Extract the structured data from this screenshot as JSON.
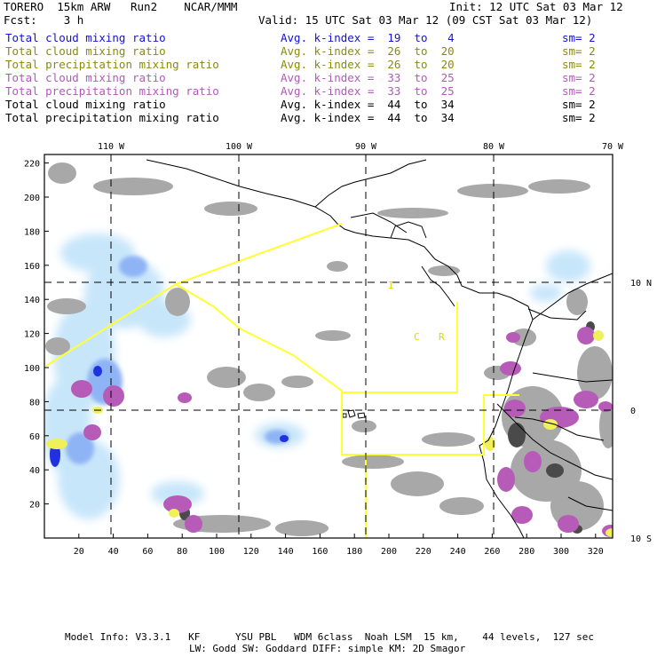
{
  "header": {
    "model": "TORERO  15km ARW   Run2    NCAR/MMM",
    "init": "Init: 12 UTC Sat 03 Mar 12",
    "fcst": "Fcst:    3 h",
    "valid": "Valid: 15 UTC Sat 03 Mar 12 (09 CST Sat 03 Mar 12)"
  },
  "legend": [
    {
      "field": "Total cloud mixing ratio",
      "kindex": "Avg. k-index =  19  to   4",
      "sm": "sm= 2",
      "color": "#1414c8"
    },
    {
      "field": "Total cloud mixing ratio",
      "kindex": "Avg. k-index =  26  to  20",
      "sm": "sm= 2",
      "color": "#8a8a10"
    },
    {
      "field": "Total precipitation mixing ratio",
      "kindex": "Avg. k-index =  26  to  20",
      "sm": "sm= 2",
      "color": "#8a8a10"
    },
    {
      "field": "Total cloud mixing ratio",
      "kindex": "Avg. k-index =  33  to  25",
      "sm": "sm= 2",
      "color": "#b05ab8"
    },
    {
      "field": "Total precipitation mixing ratio",
      "kindex": "Avg. k-index =  33  to  25",
      "sm": "sm= 2",
      "color": "#b05ab8"
    },
    {
      "field": "Total cloud mixing ratio",
      "kindex": "Avg. k-index =  44  to  34",
      "sm": "sm= 2",
      "color": "#000000"
    },
    {
      "field": "Total precipitation mixing ratio",
      "kindex": "Avg. k-index =  44  to  34",
      "sm": "sm= 2",
      "color": "#000000"
    }
  ],
  "map": {
    "lon_labels": [
      "110 W",
      "100 W",
      "90 W",
      "80 W",
      "70 W"
    ],
    "lat_labels": [
      "10 N",
      "0",
      "10 S"
    ],
    "y_ticks": [
      "220",
      "200",
      "180",
      "160",
      "140",
      "120",
      "100",
      "80",
      "60",
      "40",
      "20"
    ],
    "x_ticks": [
      "20",
      "40",
      "60",
      "80",
      "100",
      "120",
      "140",
      "160",
      "180",
      "200",
      "220",
      "240",
      "260",
      "280",
      "300",
      "320"
    ],
    "region_letters": [
      "I",
      "C",
      "R"
    ],
    "colors": {
      "ocean": "#ffffff",
      "blue_light": "#c8e6fa",
      "blue_mid": "#8fb4f5",
      "blue_dark": "#2032e0",
      "gray": "#a8a8a8",
      "gray_dark": "#4a4a4a",
      "violet": "#b65cb8",
      "yellow": "#f0f05a",
      "box": "#ffff33"
    }
  },
  "footer": {
    "line1": "Model Info: V3.3.1   KF      YSU PBL   WDM 6class  Noah LSM  15 km,    44 levels,  127 sec",
    "line2": "LW: Godd SW: Goddard DIFF: simple KM: 2D Smagor"
  }
}
